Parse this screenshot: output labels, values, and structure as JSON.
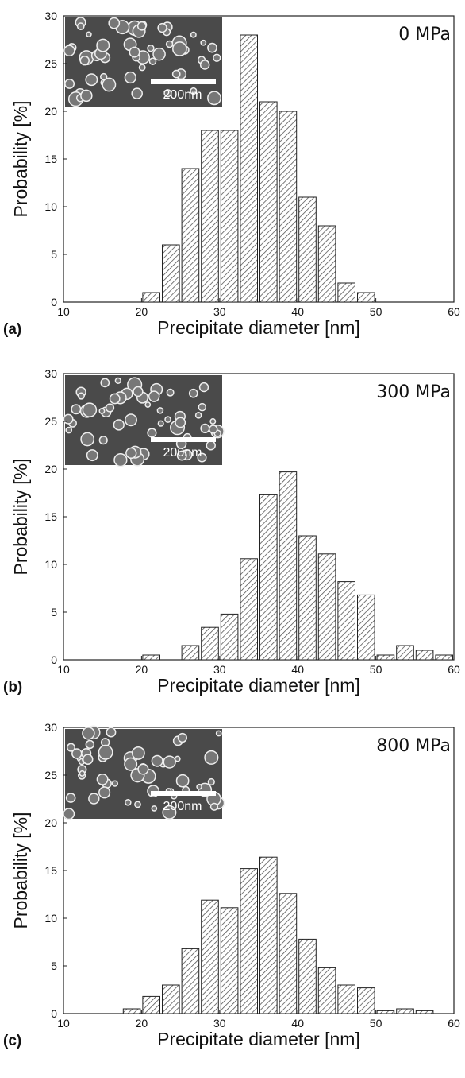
{
  "chart_data": [
    {
      "type": "histogram",
      "panel_label": "(a)",
      "annotation": "0 MPa",
      "inset_label": "200nm",
      "x_label": "Precipitate diameter [nm]",
      "y_label": "Probability [%]",
      "bins": [
        20,
        22.5,
        25,
        27.5,
        30,
        32.5,
        35,
        37.5,
        40,
        42.5,
        45,
        47.5,
        50
      ],
      "values": [
        1,
        6,
        14,
        18,
        18,
        28,
        21,
        20,
        11,
        8,
        2,
        1
      ],
      "xlim": [
        10,
        60
      ],
      "xticks": [
        10,
        20,
        30,
        40,
        50,
        60
      ],
      "ylim": [
        0,
        30
      ],
      "yticks": [
        0,
        5,
        10,
        15,
        20,
        25,
        30
      ],
      "color": "#555555"
    },
    {
      "type": "histogram",
      "panel_label": "(b)",
      "annotation": "300 MPa",
      "inset_label": "200nm",
      "x_label": "Precipitate diameter [nm]",
      "y_label": "Probability [%]",
      "bins": [
        20,
        22.5,
        25,
        27.5,
        30,
        32.5,
        35,
        37.5,
        40,
        42.5,
        45,
        47.5,
        50,
        52.5,
        55,
        57.5,
        60
      ],
      "values": [
        0.5,
        0,
        1.5,
        3.4,
        4.8,
        10.6,
        17.3,
        19.7,
        13,
        11.1,
        8.2,
        6.8,
        0.5,
        1.5,
        1,
        0.5
      ],
      "xlim": [
        10,
        60
      ],
      "xticks": [
        10,
        20,
        30,
        40,
        50,
        60
      ],
      "ylim": [
        0,
        30
      ],
      "yticks": [
        0,
        5,
        10,
        15,
        20,
        25,
        30
      ],
      "color": "#555555"
    },
    {
      "type": "histogram",
      "panel_label": "(c)",
      "annotation": "800 MPa",
      "inset_label": "200nm",
      "x_label": "Precipitate diameter [nm]",
      "y_label": "Probability [%]",
      "bins": [
        17.5,
        20,
        22.5,
        25,
        27.5,
        30,
        32.5,
        35,
        37.5,
        40,
        42.5,
        45,
        47.5,
        50,
        52.5,
        55,
        57.5
      ],
      "values": [
        0.5,
        1.8,
        3,
        6.8,
        11.9,
        11.1,
        15.2,
        16.4,
        12.6,
        7.8,
        4.8,
        3,
        2.7,
        0.3,
        0.5,
        0.3
      ],
      "xlim": [
        10,
        60
      ],
      "xticks": [
        10,
        20,
        30,
        40,
        50,
        60
      ],
      "ylim": [
        0,
        30
      ],
      "yticks": [
        0,
        5,
        10,
        15,
        20,
        25,
        30
      ],
      "color": "#555555"
    }
  ]
}
